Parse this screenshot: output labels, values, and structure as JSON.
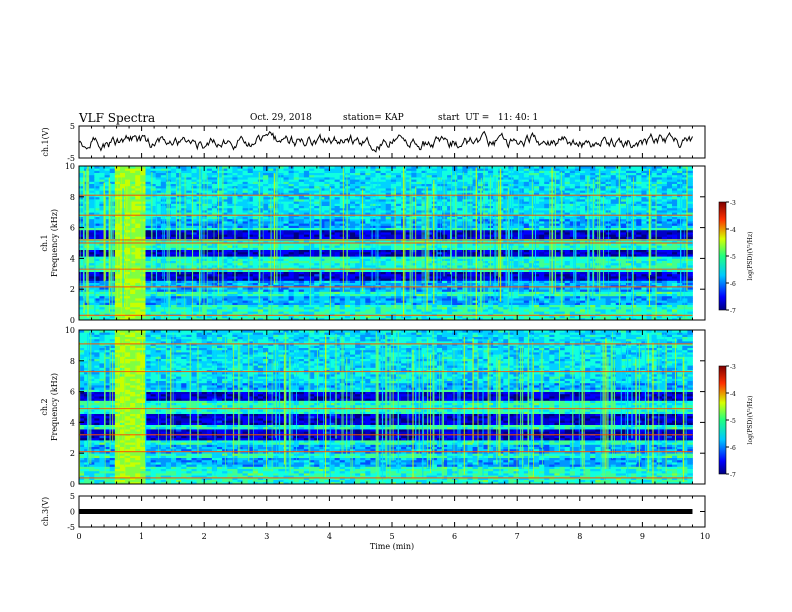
{
  "header": {
    "title": "VLF Spectra",
    "date": "Oct. 29, 2018",
    "station": "station= KAP",
    "start": "start  UT =   11: 40: 1"
  },
  "chart_data": [
    {
      "type": "line",
      "panel": "ch1-waveform",
      "ylabel": "ch.1(V)",
      "ylim": [
        -5,
        5
      ],
      "yticks": [
        "5",
        "-5"
      ],
      "xlim": [
        0,
        10
      ],
      "data_extent": [
        0,
        9.8
      ],
      "level": 0,
      "amplitude": 1.4
    },
    {
      "type": "heatmap",
      "panel": "ch1-spectrogram",
      "ylabel": "ch.1 Frequency (kHz)",
      "ylabel_lines": [
        "ch.1",
        "Frequency  (kHz)"
      ],
      "ylim": [
        0,
        10
      ],
      "yticks": [
        "0",
        "2",
        "4",
        "6",
        "8",
        "10"
      ],
      "xlim": [
        0,
        10
      ],
      "data_extent": [
        0,
        9.8
      ],
      "burst": [
        0.5,
        1.05
      ],
      "dark_bands_khz": [
        [
          3.2,
          2.6
        ],
        [
          4.6,
          4.1
        ],
        [
          5.9,
          5.3
        ]
      ],
      "quiet_bands_khz": [
        [
          2.5,
          1.9
        ],
        [
          6.5,
          6.0
        ],
        [
          1.6,
          1.0
        ]
      ],
      "strong_lines_khz": [
        2.15,
        0.3,
        3.3,
        5.0,
        5.2,
        6.8,
        8.1
      ],
      "colorbar": {
        "label": "log(PSD)(V²/Hz)",
        "range": [
          -7,
          -3
        ],
        "ticks": [
          "-3",
          "-4",
          "-5",
          "-6",
          "-7"
        ]
      }
    },
    {
      "type": "heatmap",
      "panel": "ch2-spectrogram",
      "ylabel": "ch.2 Frequency (kHz)",
      "ylabel_lines": [
        "ch.2",
        "Frequency  (kHz)"
      ],
      "ylim": [
        0,
        10
      ],
      "yticks": [
        "0",
        "2",
        "4",
        "6",
        "8",
        "10"
      ],
      "xlim": [
        0,
        10
      ],
      "data_extent": [
        0,
        9.8
      ],
      "burst": [
        0.5,
        1.05
      ],
      "dark_bands_khz": [
        [
          3.6,
          2.8
        ],
        [
          4.5,
          3.8
        ],
        [
          6.0,
          5.4
        ]
      ],
      "quiet_bands_khz": [
        [
          2.6,
          2.0
        ],
        [
          6.6,
          6.1
        ],
        [
          1.7,
          1.1
        ]
      ],
      "strong_lines_khz": [
        2.1,
        0.4,
        3.2,
        4.9,
        7.3,
        9.1
      ],
      "colorbar": {
        "label": "log(PSD)(V²/Hz)",
        "range": [
          -7,
          -3
        ],
        "ticks": [
          "-3",
          "-4",
          "-5",
          "-6",
          "-7"
        ]
      }
    },
    {
      "type": "line",
      "panel": "ch3-waveform",
      "ylabel": "ch.3(V)",
      "ylim": [
        -5,
        5
      ],
      "yticks": [
        "5",
        "0",
        "-5"
      ],
      "xlim": [
        0,
        10
      ],
      "data_extent": [
        0,
        9.8
      ],
      "level": 0,
      "amplitude": 0
    }
  ],
  "xaxis": {
    "label": "Time  (min)",
    "ticks": [
      "0",
      "1",
      "2",
      "3",
      "4",
      "5",
      "6",
      "7",
      "8",
      "9",
      "10"
    ]
  },
  "colors": {
    "line": "#000000",
    "frame": "#000000"
  }
}
